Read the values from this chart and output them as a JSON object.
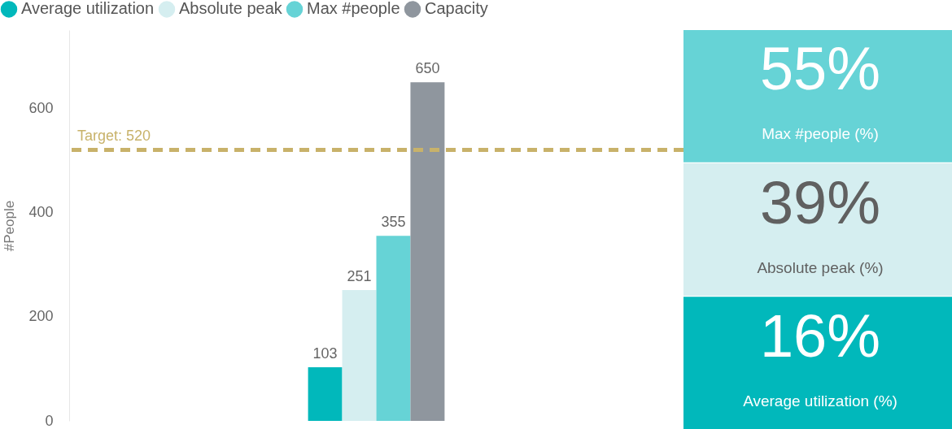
{
  "chart_data": [
    {
      "type": "bar",
      "ylabel": "#People",
      "categories": [
        null
      ],
      "series": [
        {
          "name": "Average utilization",
          "color": "#01b8bb",
          "values": [
            103
          ]
        },
        {
          "name": "Absolute peak",
          "color": "#d5eef0",
          "values": [
            251
          ]
        },
        {
          "name": "Max #people",
          "color": "#66d3d6",
          "values": [
            355
          ]
        },
        {
          "name": "Capacity",
          "color": "#8f969e",
          "values": [
            650
          ]
        }
      ],
      "ylim": [
        0,
        750
      ],
      "yticks": [
        0,
        200,
        400,
        600
      ],
      "grid": false,
      "legend": "top left",
      "tick_labels": "y",
      "data_labels": true,
      "ref_lines": [
        {
          "axis": "y",
          "value": 520,
          "label": "Target: 520",
          "color": "#c8b26a",
          "line_style": "dashed"
        }
      ]
    },
    {
      "type": "other",
      "categories": [
        "Max #people (%)",
        "Absolute peak (%)",
        "Average utilization (%)"
      ],
      "values": [
        55,
        39,
        16
      ],
      "value_labels": [
        "55%",
        "39%",
        "16%"
      ],
      "colors": [
        "#66d3d6",
        "#d5eef0",
        "#01b8bb"
      ]
    }
  ]
}
